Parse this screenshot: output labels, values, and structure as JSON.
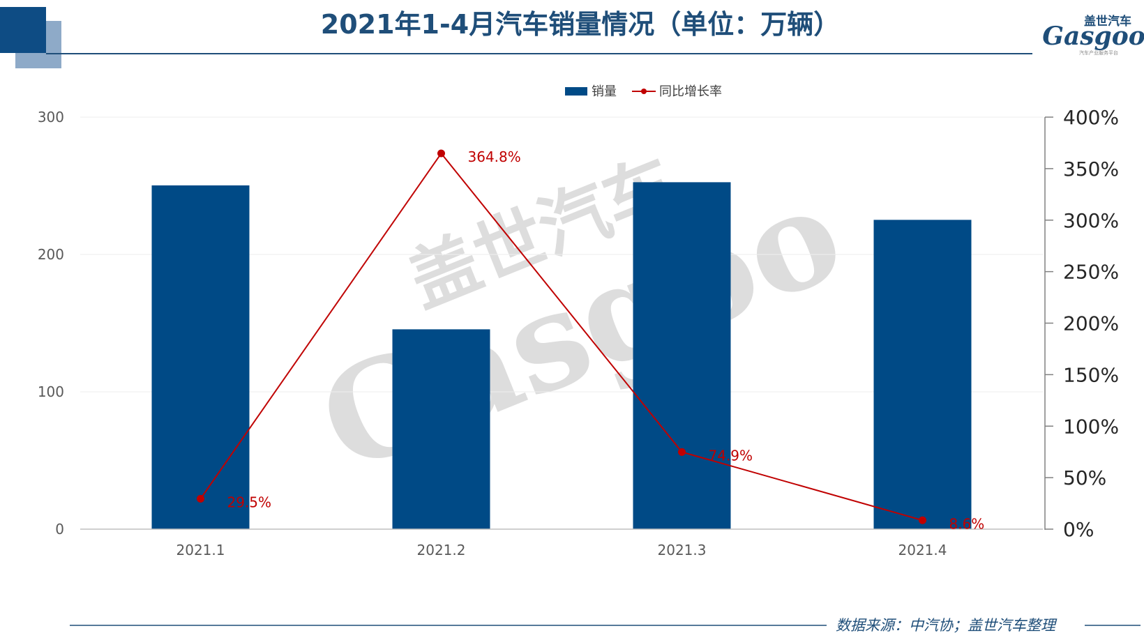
{
  "header": {
    "title": "2021年1-4月汽车销量情况（单位：万辆）",
    "logo_cn": "盖世汽车",
    "logo_en": "Gasgoo",
    "logo_tagline": "汽车产业服务平台"
  },
  "watermark": {
    "cn": "盖世汽车",
    "en": "Gasgoo"
  },
  "footer": {
    "source": "数据来源：中汽协；盖世汽车整理"
  },
  "colors": {
    "bar": "#004a86",
    "line": "#c00000",
    "title": "#1f4e79",
    "accent_dark": "#0e4c84",
    "accent_light": "#8eaac8",
    "grid": "#eeeeee",
    "axis_text": "#595959"
  },
  "chart_data": {
    "type": "bar",
    "categories": [
      "2021.1",
      "2021.2",
      "2021.3",
      "2021.4"
    ],
    "series": [
      {
        "name": "销量",
        "type": "bar",
        "axis": "left",
        "values": [
          250.3,
          145.5,
          252.6,
          225.2
        ]
      },
      {
        "name": "同比增长率",
        "type": "line",
        "axis": "right",
        "values": [
          29.5,
          364.8,
          74.9,
          8.6
        ],
        "labels": [
          "29.5%",
          "364.8%",
          "74.9%",
          "8.6%"
        ]
      }
    ],
    "y_left": {
      "ylim": [
        0,
        300
      ],
      "ticks": [
        "0",
        "100",
        "200",
        "300"
      ]
    },
    "y_right": {
      "ylim": [
        0,
        400
      ],
      "ticks": [
        "0%",
        "50%",
        "100%",
        "150%",
        "200%",
        "250%",
        "300%",
        "350%",
        "400%"
      ]
    },
    "grid": true,
    "legend": "top-center"
  }
}
